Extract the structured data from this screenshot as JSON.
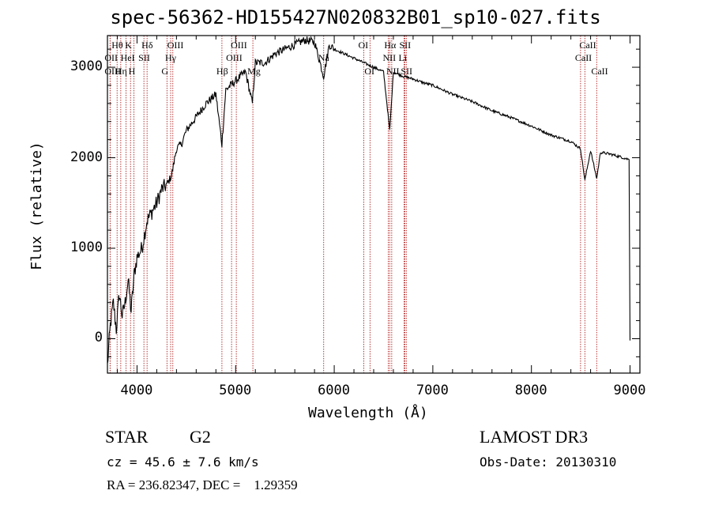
{
  "chart_data": {
    "type": "line",
    "title": "spec-56362-HD155427N020832B01_sp10-027.fits",
    "xlabel": "Wavelength (Å)",
    "ylabel": "Flux (relative)",
    "xlim": [
      3700,
      9100
    ],
    "ylim": [
      -380,
      3350
    ],
    "xticks": [
      4000,
      5000,
      6000,
      7000,
      8000,
      9000
    ],
    "yticks": [
      0,
      1000,
      2000,
      3000
    ],
    "xtick_labels": [
      "4000",
      "5000",
      "6000",
      "7000",
      "8000",
      "9000"
    ],
    "ytick_labels": [
      "0",
      "1000",
      "2000",
      "3000"
    ],
    "series": [
      {
        "name": "flux",
        "x": [
          3700,
          3730,
          3760,
          3790,
          3820,
          3850,
          3880,
          3910,
          3940,
          3970,
          4000,
          4050,
          4100,
          4150,
          4200,
          4250,
          4300,
          4350,
          4400,
          4450,
          4500,
          4600,
          4700,
          4800,
          4861,
          4900,
          5000,
          5100,
          5170,
          5200,
          5300,
          5400,
          5500,
          5600,
          5700,
          5800,
          5893,
          5950,
          6000,
          6100,
          6200,
          6300,
          6400,
          6500,
          6563,
          6600,
          6700,
          6800,
          6900,
          7000,
          7200,
          7400,
          7600,
          7800,
          8000,
          8200,
          8400,
          8498,
          8542,
          8600,
          8662,
          8700,
          8800,
          8900,
          8990,
          9000
        ],
        "y": [
          -300,
          150,
          400,
          100,
          500,
          250,
          400,
          650,
          300,
          700,
          900,
          1000,
          1300,
          1400,
          1500,
          1650,
          1700,
          1800,
          2100,
          2150,
          2300,
          2450,
          2600,
          2700,
          2150,
          2750,
          2850,
          2950,
          2600,
          3050,
          3050,
          3150,
          3200,
          3250,
          3300,
          3280,
          2900,
          3250,
          3200,
          3150,
          3100,
          3050,
          3000,
          2950,
          2300,
          2950,
          2900,
          2870,
          2830,
          2800,
          2700,
          2620,
          2520,
          2440,
          2350,
          2250,
          2180,
          2100,
          1750,
          2080,
          1770,
          2060,
          2040,
          2010,
          1980,
          -20
        ]
      }
    ],
    "spectral_lines": [
      {
        "label": "Hθ",
        "wavelength": 3798,
        "row": 0
      },
      {
        "label": "OII",
        "wavelength": 3727,
        "row": 1
      },
      {
        "label": "OIII",
        "wavelength": 3727,
        "row": 2
      },
      {
        "label": "HeI",
        "wavelength": 3889,
        "row": 1
      },
      {
        "label": "Hη",
        "wavelength": 3835,
        "row": 2
      },
      {
        "label": "K",
        "wavelength": 3934,
        "row": 0
      },
      {
        "label": "SII",
        "wavelength": 4070,
        "row": 1
      },
      {
        "label": "H",
        "wavelength": 3969,
        "row": 2
      },
      {
        "label": "Hδ",
        "wavelength": 4102,
        "row": 0
      },
      {
        "label": "OIII",
        "wavelength": 4363,
        "row": 0
      },
      {
        "label": "Hγ",
        "wavelength": 4341,
        "row": 1
      },
      {
        "label": "G",
        "wavelength": 4304,
        "row": 2
      },
      {
        "label": "Hβ",
        "wavelength": 4861,
        "row": 2
      },
      {
        "label": "OIII",
        "wavelength": 5007,
        "row": 0
      },
      {
        "label": "OIII",
        "wavelength": 4959,
        "row": 1
      },
      {
        "label": "Mg",
        "wavelength": 5175,
        "row": 2
      },
      {
        "label": "Na",
        "wavelength": 5893,
        "row": 1
      },
      {
        "label": "OI",
        "wavelength": 6300,
        "row": 0
      },
      {
        "label": "OI",
        "wavelength": 6363,
        "row": 2
      },
      {
        "label": "Hα",
        "wavelength": 6563,
        "row": 0
      },
      {
        "label": "NII",
        "wavelength": 6548,
        "row": 1
      },
      {
        "label": "NII",
        "wavelength": 6583,
        "row": 2
      },
      {
        "label": "SII",
        "wavelength": 6716,
        "row": 0
      },
      {
        "label": "Li",
        "wavelength": 6708,
        "row": 1
      },
      {
        "label": "SII",
        "wavelength": 6731,
        "row": 2
      },
      {
        "label": "CaII",
        "wavelength": 8542,
        "row": 0
      },
      {
        "label": "CaII",
        "wavelength": 8498,
        "row": 1
      },
      {
        "label": "CaII",
        "wavelength": 8662,
        "row": 2
      }
    ],
    "grid": false,
    "legend": "none"
  },
  "info": {
    "object_type": "STAR",
    "subclass": "G2",
    "survey": "LAMOST DR3",
    "cz": "cz = 45.6 ± 7.6 km/s",
    "obs_date": "Obs-Date: 20130310",
    "coords": "RA = 236.82347, DEC =    1.29359"
  },
  "colors": {
    "line": "#000000",
    "marker_lines": "#b22222",
    "axes": "#000000"
  }
}
